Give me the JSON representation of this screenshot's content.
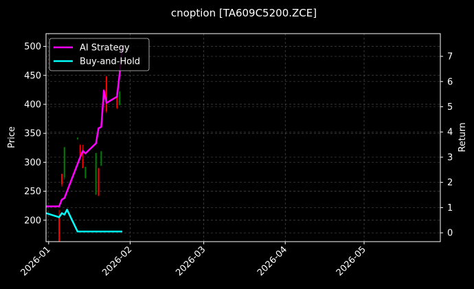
{
  "chart_data": {
    "type": "line",
    "title": "cnoption [TA609C5200.ZCE]",
    "ylabel": "Price",
    "y2label": "Return",
    "xlim": [
      "2025-12-31",
      "2026-05-30"
    ],
    "ylim": [
      163,
      522
    ],
    "y2lim": [
      -0.35,
      7.9
    ],
    "x_ticks": [
      "2026-01",
      "2026-02",
      "2026-03",
      "2026-04",
      "2026-05"
    ],
    "x_tick_dates": [
      "2026-01-01",
      "2026-02-01",
      "2026-03-01",
      "2026-04-01",
      "2026-05-01"
    ],
    "y_ticks": [
      200,
      250,
      300,
      350,
      400,
      450,
      500
    ],
    "y2_ticks": [
      0,
      1,
      2,
      3,
      4,
      5,
      6,
      7
    ],
    "grid": true,
    "legend_position": "top-left",
    "background": "#000000",
    "candles": [
      {
        "date": "2026-01-05",
        "open": 206,
        "close": 162,
        "high": 218,
        "low": 162,
        "color": "#ff0000"
      },
      {
        "date": "2026-01-06",
        "open": 280,
        "close": 262,
        "high": 280,
        "low": 258,
        "color": "#ff0000"
      },
      {
        "date": "2026-01-07",
        "open": 274,
        "close": 326,
        "high": 326,
        "low": 270,
        "color": "#008000"
      },
      {
        "date": "2026-01-12",
        "open": 340,
        "close": 342,
        "high": 343,
        "low": 339,
        "color": "#008000"
      },
      {
        "date": "2026-01-13",
        "open": 329,
        "close": 312,
        "high": 331,
        "low": 305,
        "color": "#ff0000"
      },
      {
        "date": "2026-01-14",
        "open": 290,
        "close": 305,
        "high": 330,
        "low": 290,
        "color": "#ff0000"
      },
      {
        "date": "2026-01-15",
        "open": 273,
        "close": 292,
        "high": 292,
        "low": 272,
        "color": "#008000"
      },
      {
        "date": "2026-01-19",
        "open": 244,
        "close": 316,
        "high": 316,
        "low": 244,
        "color": "#008000"
      },
      {
        "date": "2026-01-20",
        "open": 290,
        "close": 242,
        "high": 290,
        "low": 242,
        "color": "#ff0000"
      },
      {
        "date": "2026-01-21",
        "open": 294,
        "close": 319,
        "high": 319,
        "low": 294,
        "color": "#008000"
      },
      {
        "date": "2026-01-22",
        "open": 420,
        "close": 408,
        "high": 421,
        "low": 405,
        "color": "#ff0000"
      },
      {
        "date": "2026-01-23",
        "open": 448,
        "close": 388,
        "high": 449,
        "low": 385,
        "color": "#ff0000"
      },
      {
        "date": "2026-01-27",
        "open": 420,
        "close": 394,
        "high": 421,
        "low": 392,
        "color": "#ff0000"
      },
      {
        "date": "2026-01-28",
        "open": 399,
        "close": 422,
        "high": 423,
        "low": 398,
        "color": "#008000"
      }
    ],
    "series": [
      {
        "name": "AI Strategy",
        "color": "#ff00ff",
        "axis": "right",
        "x": [
          "2025-12-31",
          "2026-01-05",
          "2026-01-06",
          "2026-01-07",
          "2026-01-13",
          "2026-01-14",
          "2026-01-15",
          "2026-01-19",
          "2026-01-20",
          "2026-01-21",
          "2026-01-22",
          "2026-01-23",
          "2026-01-27",
          "2026-01-28",
          "2026-01-29"
        ],
        "values": [
          1.05,
          1.05,
          1.32,
          1.38,
          3.0,
          3.25,
          3.15,
          3.55,
          4.15,
          4.2,
          5.65,
          5.15,
          5.4,
          6.3,
          7.4
        ]
      },
      {
        "name": "Buy-and-Hold",
        "color": "#00ffff",
        "axis": "right",
        "x": [
          "2025-12-31",
          "2026-01-05",
          "2026-01-06",
          "2026-01-07",
          "2026-01-08",
          "2026-01-12",
          "2026-01-13",
          "2026-01-29"
        ],
        "values": [
          0.78,
          0.62,
          0.78,
          0.72,
          0.92,
          0.05,
          0.05,
          0.05
        ]
      }
    ]
  }
}
